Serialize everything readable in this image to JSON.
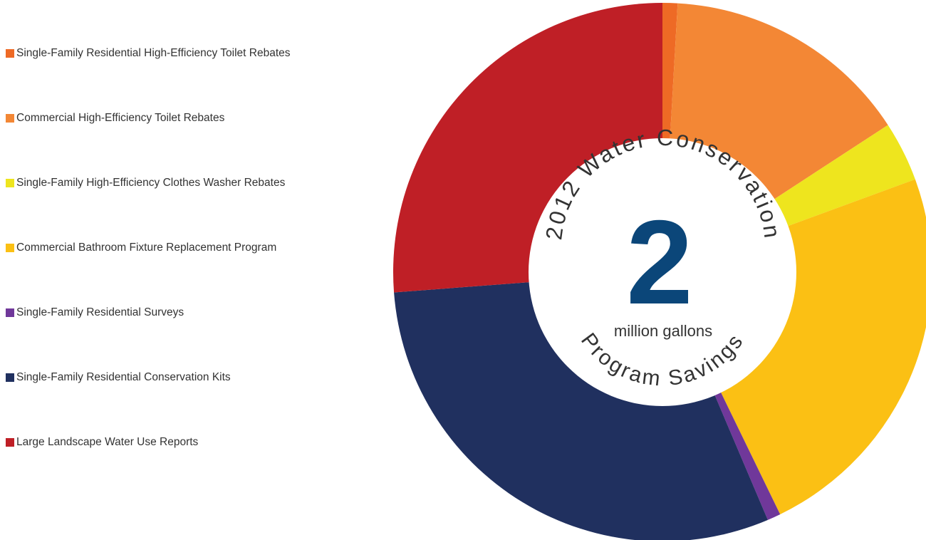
{
  "chart_data": {
    "type": "pie",
    "center": {
      "top_text": "2012 Water Conservation",
      "value": "2",
      "unit": "million gallons",
      "bottom_text": "Program Savings"
    },
    "slices": [
      {
        "label": "Single-Family Residential High-Efficiency Toilet Rebates",
        "value": 0.9,
        "color": "#EE6A25"
      },
      {
        "label": "Commercial High-Efficiency Toilet Rebates",
        "value": 14.9,
        "color": "#F38735"
      },
      {
        "label": "Single-Family High-Efficiency Clothes Washer Rebates",
        "value": 3.6,
        "color": "#EEE51E"
      },
      {
        "label": "Commercial Bathroom Fixture Replacement Program",
        "value": 23.4,
        "color": "#FBC014"
      },
      {
        "label": "Single-Family Residential Surveys",
        "value": 0.8,
        "color": "#70389A"
      },
      {
        "label": "Single-Family Residential Conservation Kits",
        "value": 30.2,
        "color": "#20305F"
      },
      {
        "label": "Large Landscape Water Use Reports",
        "value": 26.2,
        "color": "#BF1F26"
      }
    ],
    "center_value_color": "#0B4679",
    "legend_position": "left"
  }
}
